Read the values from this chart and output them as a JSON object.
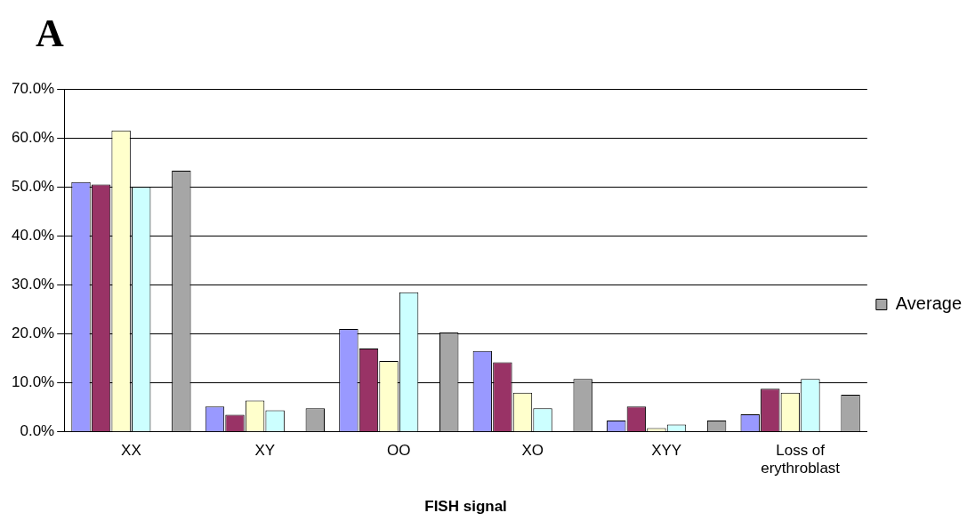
{
  "chart_data": {
    "type": "bar",
    "title": "A",
    "xlabel": "FISH signal",
    "categories": [
      "XX",
      "XY",
      "OO",
      "XO",
      "XYY",
      "Loss of erythroblast"
    ],
    "series": [
      {
        "color": "#9999ff",
        "values": [
          51,
          5.2,
          21,
          16.5,
          2.3,
          3.6
        ]
      },
      {
        "color": "#993366",
        "values": [
          50.5,
          3.5,
          17,
          14.2,
          5.2,
          8.8
        ]
      },
      {
        "color": "#ffffcc",
        "values": [
          61.5,
          6.4,
          14.5,
          8,
          0.8,
          8
        ]
      },
      {
        "color": "#ccffff",
        "values": [
          50,
          4.4,
          28.5,
          4.8,
          1.5,
          10.8
        ]
      },
      {
        "color": "#660066",
        "values": [
          null,
          null,
          null,
          null,
          null,
          null
        ]
      },
      {
        "name": "Average",
        "color": "#a6a6a6",
        "values": [
          53.3,
          4.8,
          20.3,
          10.8,
          2.3,
          7.6
        ]
      }
    ],
    "ylim": [
      0,
      70
    ],
    "yticks": [
      {
        "value": 0,
        "label": "0.0%"
      },
      {
        "value": 10,
        "label": "10.0%"
      },
      {
        "value": 20,
        "label": "20.0%"
      },
      {
        "value": 30,
        "label": "30.0%"
      },
      {
        "value": 40,
        "label": "40.0%"
      },
      {
        "value": 50,
        "label": "50.0%"
      },
      {
        "value": 60,
        "label": "60.0%"
      },
      {
        "value": 70,
        "label": "70.0%"
      }
    ],
    "grid": "y",
    "legend": "right"
  }
}
